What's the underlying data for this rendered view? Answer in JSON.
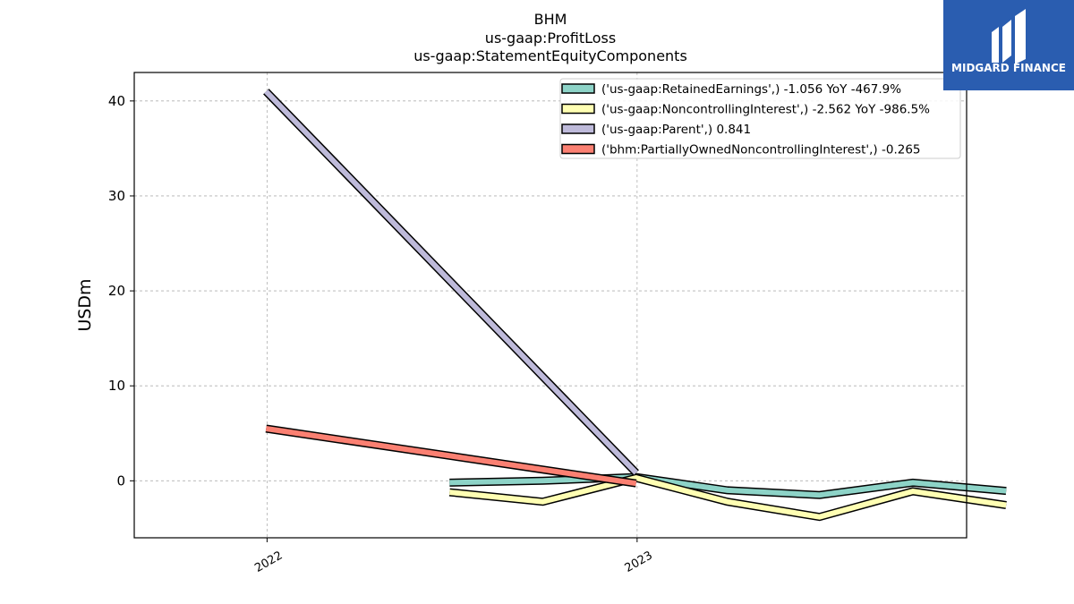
{
  "chart_data": {
    "type": "line",
    "title_lines": [
      "BHM",
      "us-gaap:ProfitLoss",
      "us-gaap:StatementEquityComponents"
    ],
    "ylabel": "USDm",
    "xlabel": "",
    "x_ticks": [
      "2022",
      "2023"
    ],
    "y_ticks": [
      0,
      10,
      20,
      30,
      40
    ],
    "ylim": [
      -6,
      43
    ],
    "xlim": [
      "2021-08-23",
      "2023-11-22"
    ],
    "grid": true,
    "legend_position": "top-right",
    "series": [
      {
        "name": "('us-gaap:RetainedEarnings',) -1.056 YoY -467.9%",
        "color": "#8dd3c7",
        "x": [
          "2022-06-30",
          "2022-09-30",
          "2022-12-31",
          "2023-03-31",
          "2023-06-30",
          "2023-09-30",
          "2023-12-31"
        ],
        "y": [
          -0.2,
          0.0,
          0.4,
          -1.0,
          -1.5,
          -0.2,
          -1.06
        ]
      },
      {
        "name": "('us-gaap:NoncontrollingInterest',) -2.562 YoY -986.5%",
        "color": "#ffffb3",
        "x": [
          "2022-06-30",
          "2022-09-30",
          "2022-12-31",
          "2023-03-31",
          "2023-06-30",
          "2023-09-30",
          "2023-12-31"
        ],
        "y": [
          -1.2,
          -2.2,
          0.3,
          -2.2,
          -3.8,
          -1.1,
          -2.56
        ]
      },
      {
        "name": "('us-gaap:Parent',) 0.841",
        "color": "#bebada",
        "x": [
          "2021-12-31",
          "2022-12-31"
        ],
        "y": [
          41.0,
          0.84
        ]
      },
      {
        "name": "('bhm:PartiallyOwnedNoncontrollingInterest',) -0.265",
        "color": "#fb8072",
        "x": [
          "2021-12-31",
          "2022-12-31"
        ],
        "y": [
          5.5,
          -0.27
        ]
      }
    ]
  },
  "logo": {
    "text": "MIDGARD FINANCE",
    "bg_color": "#2a5db0"
  }
}
